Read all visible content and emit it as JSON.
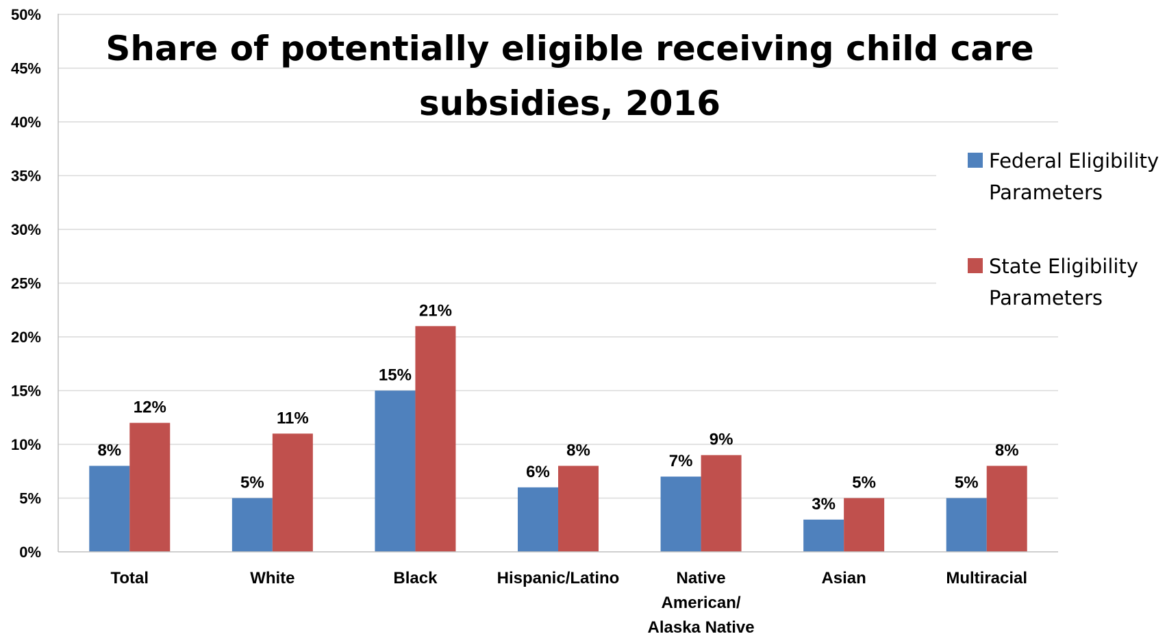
{
  "chart_data": {
    "type": "bar",
    "title_lines": [
      "Share of potentially eligible receiving child care",
      "subsidies, 2016"
    ],
    "categories": [
      "Total",
      "White",
      "Black",
      "Hispanic/Latino",
      "Native American/ Alaska Native",
      "Asian",
      "Multiracial"
    ],
    "category_lines": [
      [
        "Total"
      ],
      [
        "White"
      ],
      [
        "Black"
      ],
      [
        "Hispanic/Latino"
      ],
      [
        "Native",
        "American/",
        "Alaska Native"
      ],
      [
        "Asian"
      ],
      [
        "Multiracial"
      ]
    ],
    "series": [
      {
        "name": "Federal Eligibility Parameters",
        "legend_lines": [
          "Federal Eligibility",
          "Parameters"
        ],
        "color": "#4F81BD",
        "values": [
          8,
          5,
          15,
          6,
          7,
          3,
          5
        ],
        "labels": [
          "8%",
          "5%",
          "15%",
          "6%",
          "7%",
          "3%",
          "5%"
        ]
      },
      {
        "name": "State Eligibility Parameters",
        "legend_lines": [
          "State Eligibility",
          "Parameters"
        ],
        "color": "#C0504D",
        "values": [
          12,
          11,
          21,
          8,
          9,
          5,
          8
        ],
        "labels": [
          "12%",
          "11%",
          "21%",
          "8%",
          "9%",
          "5%",
          "8%"
        ]
      }
    ],
    "ylim": [
      0,
      50
    ],
    "yticks": [
      0,
      5,
      10,
      15,
      20,
      25,
      30,
      35,
      40,
      45,
      50
    ],
    "ytick_labels": [
      "0%",
      "5%",
      "10%",
      "15%",
      "20%",
      "25%",
      "30%",
      "35%",
      "40%",
      "45%",
      "50%"
    ],
    "grid": true,
    "legend_position": "right",
    "gridline_color": "#D9D9D9",
    "axis_color": "#BFBFBF"
  }
}
